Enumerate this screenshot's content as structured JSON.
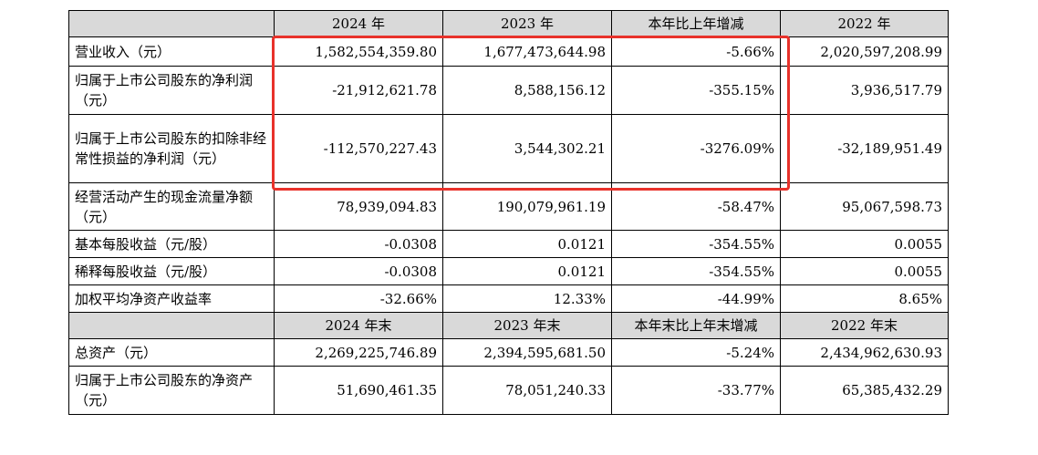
{
  "header1": [
    "2024 年",
    "2023 年",
    "本年比上年增减",
    "2022 年"
  ],
  "header2": [
    "2024 年末",
    "2023 年末",
    "本年末比上年末增减",
    "2022 年末"
  ],
  "rows_a": [
    {
      "label": "营业收入（元）",
      "values": [
        "1,582,554,359.80",
        "1,677,473,644.98",
        "-5.66%",
        "2,020,597,208.99"
      ]
    },
    {
      "label": "归属于上市公司股东的净利润（元）",
      "values": [
        "-21,912,621.78",
        "8,588,156.12",
        "-355.15%",
        "3,936,517.79"
      ]
    },
    {
      "label": "归属于上市公司股东的扣除非经常性损益的净利润（元）",
      "values": [
        "-112,570,227.43",
        "3,544,302.21",
        "-3276.09%",
        "-32,189,951.49"
      ]
    },
    {
      "label": "经营活动产生的现金流量净额（元）",
      "values": [
        "78,939,094.83",
        "190,079,961.19",
        "-58.47%",
        "95,067,598.73"
      ]
    },
    {
      "label": "基本每股收益（元/股）",
      "values": [
        "-0.0308",
        "0.0121",
        "-354.55%",
        "0.0055"
      ]
    },
    {
      "label": "稀释每股收益（元/股）",
      "values": [
        "-0.0308",
        "0.0121",
        "-354.55%",
        "0.0055"
      ]
    },
    {
      "label": "加权平均净资产收益率",
      "values": [
        "-32.66%",
        "12.33%",
        "-44.99%",
        "8.65%"
      ]
    }
  ],
  "rows_b": [
    {
      "label": "总资产（元）",
      "values": [
        "2,269,225,746.89",
        "2,394,595,681.50",
        "-5.24%",
        "2,434,962,630.93"
      ]
    },
    {
      "label": "归属于上市公司股东的净资产（元）",
      "values": [
        "51,690,461.35",
        "78,051,240.33",
        "-33.77%",
        "65,385,432.29"
      ]
    }
  ],
  "highlight_color": "#e8322b",
  "header_bg": "#d9d9d9"
}
